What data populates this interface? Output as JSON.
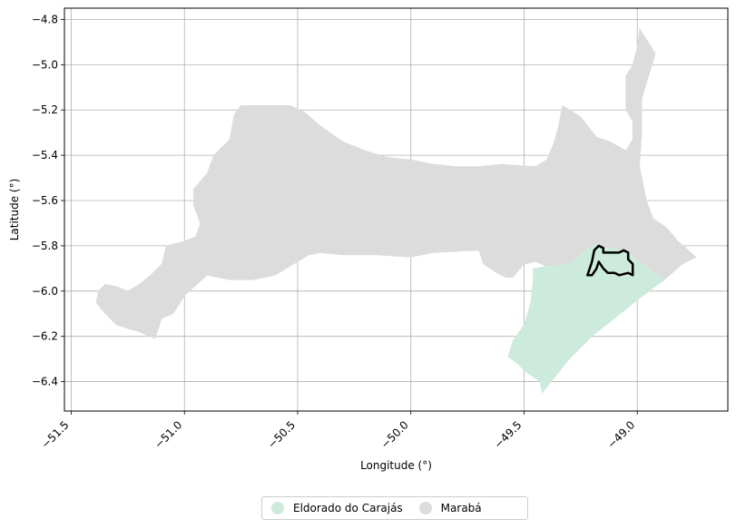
{
  "chart_data": {
    "type": "map",
    "xlabel": "Longitude (°)",
    "ylabel": "Latitude (°)",
    "xlim": [
      -51.53,
      -48.6
    ],
    "ylim": [
      -6.53,
      -4.75
    ],
    "x_ticks": [
      -51.5,
      -51.0,
      -50.5,
      -50.0,
      -49.5,
      -49.0
    ],
    "x_tick_labels": [
      "−51.5",
      "−51.0",
      "−50.5",
      "−50.0",
      "−49.5",
      "−49.0"
    ],
    "y_ticks": [
      -4.8,
      -5.0,
      -5.2,
      -5.4,
      -5.6,
      -5.8,
      -6.0,
      -6.2,
      -6.4
    ],
    "y_tick_labels": [
      "−4.8",
      "−5.0",
      "−5.2",
      "−5.4",
      "−5.6",
      "−5.8",
      "−6.0",
      "−6.2",
      "−6.4"
    ],
    "grid": true,
    "legend_placement": "bottom-center",
    "regions": [
      {
        "name": "Marabá",
        "color": "#dcdcdc",
        "coords": [
          [
            -51.39,
            -6.05
          ],
          [
            -51.38,
            -6.0
          ],
          [
            -51.35,
            -5.97
          ],
          [
            -51.3,
            -5.98
          ],
          [
            -51.25,
            -6.0
          ],
          [
            -51.2,
            -5.97
          ],
          [
            -51.15,
            -5.93
          ],
          [
            -51.1,
            -5.88
          ],
          [
            -51.08,
            -5.8
          ],
          [
            -51.0,
            -5.78
          ],
          [
            -50.95,
            -5.76
          ],
          [
            -50.93,
            -5.7
          ],
          [
            -50.96,
            -5.62
          ],
          [
            -50.96,
            -5.55
          ],
          [
            -50.9,
            -5.48
          ],
          [
            -50.87,
            -5.4
          ],
          [
            -50.8,
            -5.33
          ],
          [
            -50.78,
            -5.22
          ],
          [
            -50.75,
            -5.18
          ],
          [
            -50.6,
            -5.18
          ],
          [
            -50.53,
            -5.18
          ],
          [
            -50.47,
            -5.21
          ],
          [
            -50.4,
            -5.27
          ],
          [
            -50.3,
            -5.34
          ],
          [
            -50.2,
            -5.38
          ],
          [
            -50.1,
            -5.41
          ],
          [
            -50.0,
            -5.42
          ],
          [
            -49.9,
            -5.44
          ],
          [
            -49.8,
            -5.45
          ],
          [
            -49.74,
            -5.45
          ],
          [
            -49.7,
            -5.45
          ],
          [
            -49.6,
            -5.44
          ],
          [
            -49.45,
            -5.45
          ],
          [
            -49.4,
            -5.42
          ],
          [
            -49.37,
            -5.35
          ],
          [
            -49.35,
            -5.28
          ],
          [
            -49.33,
            -5.18
          ],
          [
            -49.25,
            -5.23
          ],
          [
            -49.18,
            -5.32
          ],
          [
            -49.12,
            -5.34
          ],
          [
            -49.05,
            -5.38
          ],
          [
            -49.02,
            -5.33
          ],
          [
            -49.02,
            -5.25
          ],
          [
            -49.05,
            -5.2
          ],
          [
            -49.05,
            -5.05
          ],
          [
            -49.02,
            -5.0
          ],
          [
            -49.0,
            -4.92
          ],
          [
            -48.99,
            -4.84
          ],
          [
            -48.92,
            -4.95
          ],
          [
            -48.95,
            -5.05
          ],
          [
            -48.98,
            -5.15
          ],
          [
            -48.98,
            -5.3
          ],
          [
            -48.99,
            -5.45
          ],
          [
            -48.96,
            -5.6
          ],
          [
            -48.93,
            -5.68
          ],
          [
            -48.87,
            -5.72
          ],
          [
            -48.82,
            -5.78
          ],
          [
            -48.74,
            -5.85
          ],
          [
            -48.8,
            -5.88
          ],
          [
            -48.88,
            -5.95
          ],
          [
            -48.95,
            -5.92
          ],
          [
            -49.0,
            -5.88
          ],
          [
            -49.2,
            -5.8
          ],
          [
            -49.3,
            -5.88
          ],
          [
            -49.4,
            -5.89
          ],
          [
            -49.45,
            -5.87
          ],
          [
            -49.5,
            -5.88
          ],
          [
            -49.55,
            -5.94
          ],
          [
            -49.58,
            -5.94
          ],
          [
            -49.62,
            -5.92
          ],
          [
            -49.68,
            -5.88
          ],
          [
            -49.7,
            -5.82
          ],
          [
            -49.9,
            -5.83
          ],
          [
            -50.0,
            -5.85
          ],
          [
            -50.15,
            -5.84
          ],
          [
            -50.3,
            -5.84
          ],
          [
            -50.4,
            -5.83
          ],
          [
            -50.45,
            -5.84
          ],
          [
            -50.5,
            -5.87
          ],
          [
            -50.55,
            -5.9
          ],
          [
            -50.6,
            -5.93
          ],
          [
            -50.7,
            -5.95
          ],
          [
            -50.8,
            -5.95
          ],
          [
            -50.9,
            -5.93
          ],
          [
            -51.0,
            -6.02
          ],
          [
            -51.05,
            -6.1
          ],
          [
            -51.1,
            -6.12
          ],
          [
            -51.13,
            -6.21
          ],
          [
            -51.2,
            -6.18
          ],
          [
            -51.3,
            -6.15
          ],
          [
            -51.35,
            -6.1
          ],
          [
            -51.39,
            -6.05
          ]
        ]
      },
      {
        "name": "Eldorado do Carajás",
        "color": "#cdebdc",
        "coords": [
          [
            -49.46,
            -5.9
          ],
          [
            -49.4,
            -5.89
          ],
          [
            -49.3,
            -5.88
          ],
          [
            -49.2,
            -5.8
          ],
          [
            -49.05,
            -5.82
          ],
          [
            -48.95,
            -5.9
          ],
          [
            -48.88,
            -5.95
          ],
          [
            -49.0,
            -6.04
          ],
          [
            -49.1,
            -6.12
          ],
          [
            -49.2,
            -6.2
          ],
          [
            -49.3,
            -6.3
          ],
          [
            -49.42,
            -6.45
          ],
          [
            -49.43,
            -6.4
          ],
          [
            -49.5,
            -6.35
          ],
          [
            -49.53,
            -6.32
          ],
          [
            -49.57,
            -6.29
          ],
          [
            -49.55,
            -6.22
          ],
          [
            -49.5,
            -6.15
          ],
          [
            -49.47,
            -6.05
          ],
          [
            -49.46,
            -5.95
          ],
          [
            -49.46,
            -5.9
          ]
        ]
      }
    ],
    "highlight_outline": {
      "color": "#000000",
      "coords": [
        [
          -49.22,
          -5.93
        ],
        [
          -49.2,
          -5.87
        ],
        [
          -49.19,
          -5.82
        ],
        [
          -49.17,
          -5.8
        ],
        [
          -49.15,
          -5.81
        ],
        [
          -49.15,
          -5.83
        ],
        [
          -49.08,
          -5.83
        ],
        [
          -49.06,
          -5.82
        ],
        [
          -49.04,
          -5.83
        ],
        [
          -49.04,
          -5.86
        ],
        [
          -49.02,
          -5.88
        ],
        [
          -49.02,
          -5.93
        ],
        [
          -49.04,
          -5.92
        ],
        [
          -49.08,
          -5.93
        ],
        [
          -49.1,
          -5.92
        ],
        [
          -49.13,
          -5.92
        ],
        [
          -49.15,
          -5.9
        ],
        [
          -49.17,
          -5.87
        ],
        [
          -49.18,
          -5.9
        ],
        [
          -49.2,
          -5.93
        ],
        [
          -49.22,
          -5.93
        ]
      ]
    }
  },
  "legend": {
    "items": [
      {
        "label": "Eldorado do Carajás",
        "color": "#cdebdc"
      },
      {
        "label": "Marabá",
        "color": "#dcdcdc"
      }
    ]
  }
}
